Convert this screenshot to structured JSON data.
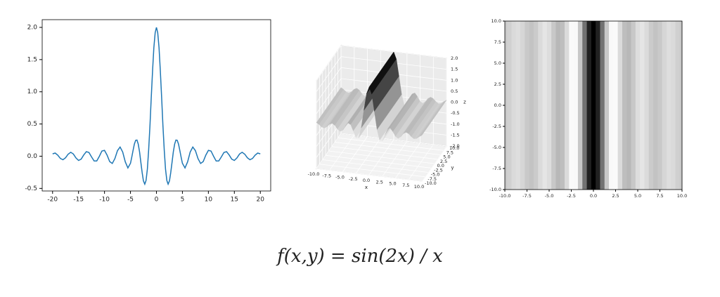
{
  "chart_data": [
    {
      "type": "line",
      "color": "#1f77b4",
      "x": [
        -20,
        -19.5,
        -19,
        -18.5,
        -18,
        -17.5,
        -17,
        -16.5,
        -16,
        -15.5,
        -15,
        -14.5,
        -14,
        -13.5,
        -13,
        -12.5,
        -12,
        -11.5,
        -11,
        -10.5,
        -10,
        -9.5,
        -9,
        -8.5,
        -8,
        -7.5,
        -7,
        -6.5,
        -6,
        -5.5,
        -5,
        -4.75,
        -4.5,
        -4.25,
        -4,
        -3.75,
        -3.5,
        -3.25,
        -3,
        -2.75,
        -2.5,
        -2.25,
        -2,
        -1.75,
        -1.5,
        -1.25,
        -1,
        -0.75,
        -0.5,
        -0.25,
        0,
        0.25,
        0.5,
        0.75,
        1,
        1.25,
        1.5,
        1.75,
        2,
        2.25,
        2.5,
        2.75,
        3,
        3.25,
        3.5,
        3.75,
        4,
        4.25,
        4.5,
        4.75,
        5,
        5.5,
        6,
        6.5,
        7,
        7.5,
        8,
        8.5,
        9,
        9.5,
        10,
        10.5,
        11,
        11.5,
        12,
        12.5,
        13,
        13.5,
        14,
        14.5,
        15,
        15.5,
        16,
        16.5,
        17,
        17.5,
        18,
        18.5,
        19,
        19.5,
        20
      ],
      "values": [
        0.037,
        0.049,
        0.016,
        -0.035,
        -0.055,
        -0.024,
        0.031,
        0.061,
        0.034,
        -0.026,
        -0.066,
        -0.046,
        0.019,
        0.071,
        0.059,
        -0.011,
        -0.075,
        -0.074,
        -0.001,
        0.08,
        0.091,
        0.016,
        -0.083,
        -0.113,
        -0.036,
        0.087,
        0.142,
        0.065,
        -0.089,
        -0.182,
        -0.109,
        -0.016,
        0.092,
        0.188,
        0.247,
        0.25,
        0.188,
        0.066,
        -0.093,
        -0.257,
        -0.384,
        -0.434,
        -0.378,
        -0.2,
        0.094,
        0.479,
        0.909,
        1.33,
        1.683,
        1.918,
        2,
        1.918,
        1.683,
        1.33,
        0.909,
        0.479,
        0.094,
        -0.2,
        -0.378,
        -0.434,
        -0.384,
        -0.257,
        -0.093,
        0.066,
        0.188,
        0.25,
        0.247,
        0.188,
        0.092,
        -0.016,
        -0.109,
        -0.182,
        -0.089,
        0.065,
        0.142,
        0.087,
        -0.036,
        -0.113,
        -0.083,
        0.016,
        0.091,
        0.08,
        -0.001,
        -0.074,
        -0.075,
        -0.011,
        0.059,
        0.071,
        0.019,
        -0.046,
        -0.066,
        -0.026,
        0.034,
        0.061,
        0.031,
        -0.024,
        -0.055,
        -0.035,
        0.016,
        0.049,
        0.037
      ],
      "xlim": [
        -22,
        22
      ],
      "ylim": [
        -0.54,
        2.12
      ],
      "xticks": [
        -20,
        -15,
        -10,
        -5,
        0,
        5,
        10,
        15,
        20
      ],
      "yticks": [
        -0.5,
        {
          "value": 0,
          "label": "0.0"
        },
        0.5,
        {
          "value": 1,
          "label": "1.0"
        },
        1.5,
        {
          "value": 2,
          "label": "2.0"
        }
      ]
    },
    {
      "type": "surface3d",
      "xlabel": "x",
      "ylabel": "y",
      "zlabel": "z",
      "x": [
        -10,
        -9.5,
        -9,
        -8.5,
        -8,
        -7.5,
        -7,
        -6.5,
        -6,
        -5.5,
        -5,
        -4.5,
        -4,
        -3.5,
        -3,
        -2.5,
        -2,
        -1.5,
        -1,
        -0.5,
        0,
        0.5,
        1,
        1.5,
        2,
        2.5,
        3,
        3.5,
        4,
        4.5,
        5,
        5.5,
        6,
        6.5,
        7,
        7.5,
        8,
        8.5,
        9,
        9.5,
        10
      ],
      "z": [
        0.091,
        0.016,
        -0.083,
        -0.113,
        -0.036,
        0.087,
        0.142,
        0.065,
        -0.089,
        -0.182,
        -0.109,
        0.092,
        0.247,
        0.188,
        -0.093,
        -0.384,
        -0.378,
        0.094,
        0.909,
        1.683,
        2,
        1.683,
        0.909,
        0.094,
        -0.378,
        -0.384,
        -0.093,
        0.188,
        0.247,
        0.092,
        -0.109,
        -0.182,
        -0.089,
        0.065,
        0.142,
        0.087,
        -0.036,
        -0.113,
        -0.083,
        0.016,
        0.091
      ],
      "xlim": [
        -10,
        10
      ],
      "ylim": [
        -10,
        10
      ],
      "zlim": [
        -2,
        2
      ],
      "xticks": [
        {
          "value": -10,
          "label": "-10.0"
        },
        -7.5,
        {
          "value": -5,
          "label": "-5.0"
        },
        -2.5,
        {
          "value": 0,
          "label": "0.0"
        },
        2.5,
        {
          "value": 5,
          "label": "5.0"
        },
        7.5,
        {
          "value": 10,
          "label": "10.0"
        }
      ],
      "yticks": [
        {
          "value": -10,
          "label": "-10.0"
        },
        -7.5,
        {
          "value": -5,
          "label": "-5.0"
        },
        -2.5,
        {
          "value": 0,
          "label": "0.0"
        },
        2.5,
        {
          "value": 5,
          "label": "5.0"
        },
        7.5,
        {
          "value": 10,
          "label": "10.0"
        }
      ],
      "zticks": [
        {
          "value": -2,
          "label": "-2.0"
        },
        -1.5,
        {
          "value": -1,
          "label": "-1.0"
        },
        -0.5,
        {
          "value": 0,
          "label": "0.0"
        },
        0.5,
        {
          "value": 1,
          "label": "1.0"
        },
        1.5,
        {
          "value": 2,
          "label": "2.0"
        }
      ]
    },
    {
      "type": "heatmap",
      "colormap": "Greys",
      "x": [
        -10,
        -9.5,
        -9,
        -8.5,
        -8,
        -7.5,
        -7,
        -6.5,
        -6,
        -5.5,
        -5,
        -4.5,
        -4,
        -3.5,
        -3,
        -2.5,
        -2,
        -1.5,
        -1,
        -0.5,
        0,
        0.5,
        1,
        1.5,
        2,
        2.5,
        3,
        3.5,
        4,
        4.5,
        5,
        5.5,
        6,
        6.5,
        7,
        7.5,
        8,
        8.5,
        9,
        9.5,
        10
      ],
      "values": [
        0.091,
        0.016,
        -0.083,
        -0.113,
        -0.036,
        0.087,
        0.142,
        0.065,
        -0.089,
        -0.182,
        -0.109,
        0.092,
        0.247,
        0.188,
        -0.093,
        -0.384,
        -0.378,
        0.094,
        0.909,
        1.683,
        2,
        1.683,
        0.909,
        0.094,
        -0.378,
        -0.384,
        -0.093,
        0.188,
        0.247,
        0.092,
        -0.109,
        -0.182,
        -0.089,
        0.065,
        0.142,
        0.087,
        -0.036,
        -0.113,
        -0.083,
        0.016,
        0.091
      ],
      "xlim": [
        -10,
        10
      ],
      "ylim": [
        -10,
        10
      ],
      "xticks": [
        {
          "value": -10,
          "label": "-10.0"
        },
        -7.5,
        {
          "value": -5,
          "label": "-5.0"
        },
        -2.5,
        {
          "value": 0,
          "label": "0.0"
        },
        2.5,
        {
          "value": 5,
          "label": "5.0"
        },
        7.5,
        {
          "value": 10,
          "label": "10.0"
        }
      ],
      "yticks": [
        {
          "value": -10,
          "label": "-10.0"
        },
        -7.5,
        {
          "value": -5,
          "label": "-5.0"
        },
        -2.5,
        {
          "value": 0,
          "label": "0.0"
        },
        2.5,
        {
          "value": 5,
          "label": "5.0"
        },
        7.5,
        {
          "value": 10,
          "label": "10.0"
        }
      ]
    }
  ],
  "caption": "f(x,y) = sin(2x) / x"
}
